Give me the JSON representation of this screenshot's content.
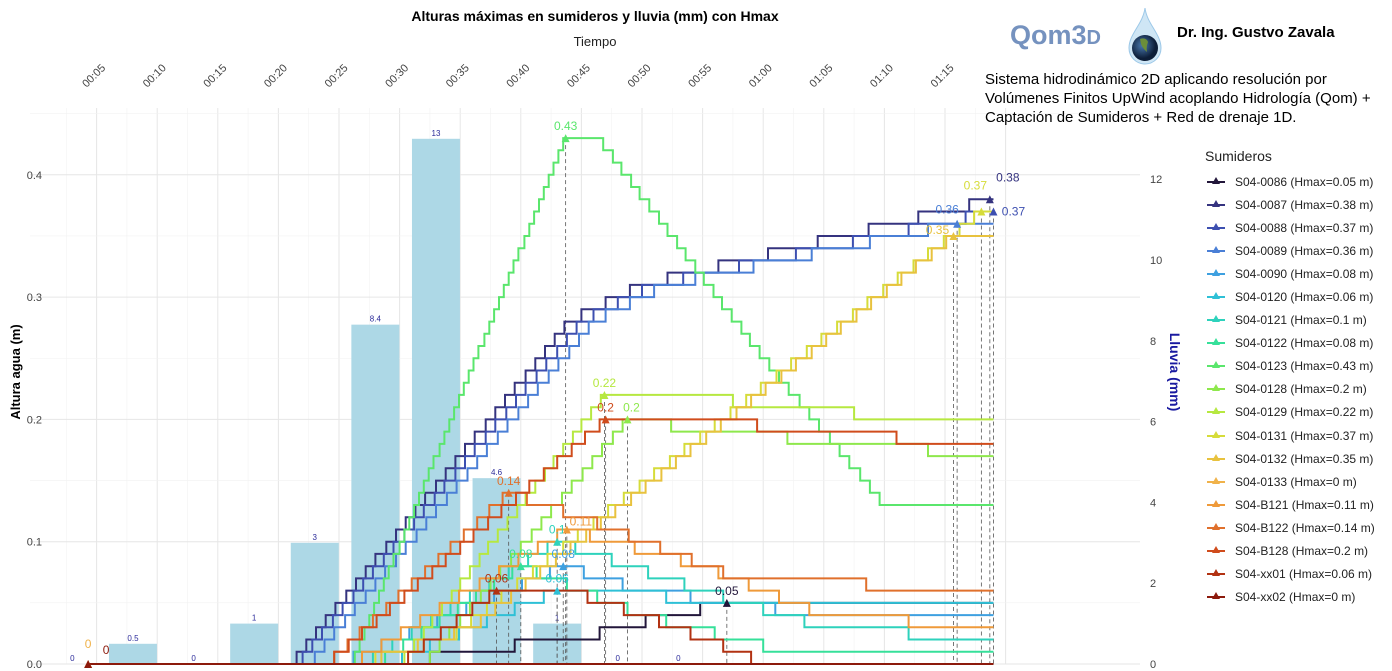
{
  "header": {
    "logo_text": "Qom3",
    "logo_suffix": "D",
    "author": "Dr. Ing. Gustvo Zavala",
    "description": "Sistema hidrodinámico 2D aplicando resolución por Volúmenes Finitos UpWind acoplando Hidrología (Qom) + Captación de Sumideros + Red de drenaje 1D."
  },
  "chart_data": {
    "type": "line",
    "title": "Alturas máximas en sumideros y lluvia (mm) con Hmax",
    "xlabel": "Tiempo",
    "ylabel": "Altura agua (m)",
    "ylabel_right": "Lluvia (mm)",
    "x_ticks": [
      "00:05",
      "00:10",
      "00:15",
      "00:20",
      "00:25",
      "00:30",
      "00:35",
      "00:40",
      "00:45",
      "00:50",
      "00:55",
      "01:00",
      "01:05",
      "01:10",
      "01:15"
    ],
    "x_tick_minutes": [
      5,
      10,
      15,
      20,
      25,
      30,
      35,
      40,
      45,
      50,
      55,
      60,
      65,
      70,
      75
    ],
    "ylim": [
      0,
      0.455
    ],
    "y_ticks": [
      "0.0",
      "0.1",
      "0.2",
      "0.3",
      "0.4"
    ],
    "y_tick_values": [
      0,
      0.1,
      0.2,
      0.3,
      0.4
    ],
    "y2_ticks": [
      "0",
      "2",
      "4",
      "6",
      "8",
      "10",
      "12"
    ],
    "y2_tick_values": [
      0,
      2,
      4,
      6,
      8,
      10,
      12
    ],
    "rain": {
      "color": "#add8e6",
      "label_color": "#2b2b9a",
      "minutes": [
        3,
        8,
        13,
        18,
        23,
        28,
        33,
        38,
        43,
        48,
        53
      ],
      "values": [
        0,
        0.5,
        0,
        1,
        3,
        8.4,
        13,
        4.6,
        1,
        0,
        0
      ],
      "labels": [
        "0",
        "0.5",
        "0",
        "1",
        "3",
        "8.4",
        "13",
        "4.6",
        "1",
        "0",
        "0"
      ]
    },
    "legend_title": "Sumideros",
    "legend_position": "right",
    "series": [
      {
        "name": "S04-0086 (Hmax=0.05 m)",
        "color": "#22163a",
        "points": [
          [
            20,
            0
          ],
          [
            31,
            0
          ],
          [
            34,
            0.01
          ],
          [
            45,
            0.02
          ],
          [
            48,
            0.03
          ],
          [
            57,
            0.05
          ],
          [
            79,
            0.05
          ]
        ],
        "peak": [
          57,
          0.05
        ],
        "peak_label": "0.05"
      },
      {
        "name": "S04-0087 (Hmax=0.38 m)",
        "color": "#35337f",
        "points": [
          [
            21,
            0
          ],
          [
            44,
            0.28
          ],
          [
            50,
            0.31
          ],
          [
            79,
            0.38
          ]
        ],
        "peak": [
          78.7,
          0.38
        ],
        "peak_label": "0.38"
      },
      {
        "name": "S04-0088 (Hmax=0.37 m)",
        "color": "#3d4fb0",
        "points": [
          [
            21.5,
            0
          ],
          [
            45,
            0.28
          ],
          [
            51,
            0.31
          ],
          [
            79,
            0.37
          ]
        ],
        "peak": [
          79,
          0.37
        ],
        "peak_label": "0.37"
      },
      {
        "name": "S04-0089 (Hmax=0.36 m)",
        "color": "#4a7fd6",
        "points": [
          [
            22.5,
            0
          ],
          [
            46,
            0.28
          ],
          [
            52,
            0.31
          ],
          [
            76,
            0.36
          ],
          [
            79,
            0.36
          ]
        ],
        "peak": [
          76,
          0.36
        ],
        "peak_label": "0.36"
      },
      {
        "name": "S04-0090 (Hmax=0.08 m)",
        "color": "#3ea0e0",
        "points": [
          [
            25,
            0
          ],
          [
            43.5,
            0.08
          ],
          [
            50,
            0.06
          ],
          [
            58,
            0.05
          ],
          [
            64,
            0.04
          ],
          [
            79,
            0.04
          ]
        ],
        "peak": [
          43.5,
          0.08
        ],
        "peak_label": "0.08"
      },
      {
        "name": "S04-0120 (Hmax=0.06 m)",
        "color": "#2ec0d6",
        "points": [
          [
            29,
            0
          ],
          [
            43,
            0.06
          ],
          [
            48,
            0.06
          ],
          [
            56,
            0.05
          ],
          [
            79,
            0.05
          ]
        ],
        "peak": [
          43,
          0.06
        ],
        "peak_label": "0.06"
      },
      {
        "name": "S04-0121 (Hmax=0.1 m)",
        "color": "#2ed2bc",
        "points": [
          [
            27,
            0
          ],
          [
            43,
            0.1
          ],
          [
            55,
            0.06
          ],
          [
            65,
            0.03
          ],
          [
            79,
            0.02
          ]
        ],
        "peak": [
          43,
          0.1
        ],
        "peak_label": "0.1"
      },
      {
        "name": "S04-0122 (Hmax=0.08 m)",
        "color": "#36e09a",
        "points": [
          [
            28,
            0
          ],
          [
            40,
            0.08
          ],
          [
            50,
            0.04
          ],
          [
            62,
            0.01
          ],
          [
            79,
            0.01
          ]
        ],
        "peak": [
          40,
          0.08
        ],
        "peak_label": "0.08"
      },
      {
        "name": "S04-0123 (Hmax=0.43 m)",
        "color": "#5ae66c",
        "points": [
          [
            26,
            0
          ],
          [
            43.7,
            0.43
          ],
          [
            46.4,
            0.43
          ],
          [
            60,
            0.25
          ],
          [
            70,
            0.13
          ],
          [
            79,
            0.13
          ]
        ],
        "peak": [
          43.7,
          0.43
        ],
        "peak_label": "0.43"
      },
      {
        "name": "S04-0128 (Hmax=0.2 m)",
        "color": "#8ee84c",
        "points": [
          [
            32,
            0
          ],
          [
            48.8,
            0.2
          ],
          [
            56,
            0.19
          ],
          [
            68,
            0.18
          ],
          [
            79,
            0.17
          ]
        ],
        "peak": [
          48.8,
          0.2
        ],
        "peak_label": "0.2"
      },
      {
        "name": "S04-0129 (Hmax=0.22 m)",
        "color": "#b6e840",
        "points": [
          [
            30,
            0
          ],
          [
            46.9,
            0.22
          ],
          [
            55,
            0.22
          ],
          [
            60,
            0.21
          ],
          [
            75,
            0.2
          ],
          [
            79,
            0.2
          ]
        ],
        "peak": [
          46.9,
          0.22
        ],
        "peak_label": "0.22"
      },
      {
        "name": "S04-0131 (Hmax=0.37 m)",
        "color": "#d6dc3a",
        "points": [
          [
            26,
            0
          ],
          [
            34,
            0.02
          ],
          [
            78,
            0.37
          ],
          [
            79,
            0.37
          ]
        ],
        "peak": [
          78,
          0.37
        ],
        "peak_label": "0.37"
      },
      {
        "name": "S04-0132 (Hmax=0.35 m)",
        "color": "#e8c23e",
        "points": [
          [
            27,
            0
          ],
          [
            36,
            0.03
          ],
          [
            75.7,
            0.35
          ],
          [
            79,
            0.35
          ]
        ],
        "peak": [
          75.7,
          0.35
        ],
        "peak_label": "0.35"
      },
      {
        "name": "S04-0133 (Hmax=0 m)",
        "color": "#f0b24a",
        "points": [
          [
            4.3,
            0
          ],
          [
            79,
            0
          ]
        ],
        "peak": [
          4.3,
          0
        ],
        "peak_label": "0"
      },
      {
        "name": "S04-B121 (Hmax=0.11 m)",
        "color": "#ef9a3a",
        "points": [
          [
            26,
            0
          ],
          [
            43.8,
            0.11
          ],
          [
            55,
            0.08
          ],
          [
            65,
            0.04
          ],
          [
            79,
            0.03
          ]
        ],
        "peak": [
          43.8,
          0.11
        ],
        "peak_label": "0.11"
      },
      {
        "name": "S04-B122 (Hmax=0.14 m)",
        "color": "#e0702c",
        "points": [
          [
            24,
            0
          ],
          [
            39,
            0.14
          ],
          [
            45,
            0.12
          ],
          [
            58,
            0.07
          ],
          [
            79,
            0.06
          ]
        ],
        "peak": [
          39,
          0.14
        ],
        "peak_label": "0.14"
      },
      {
        "name": "S04-B128 (Hmax=0.2 m)",
        "color": "#d04c1c",
        "points": [
          [
            24,
            0
          ],
          [
            47,
            0.2
          ],
          [
            56,
            0.2
          ],
          [
            63,
            0.19
          ],
          [
            79,
            0.18
          ]
        ],
        "peak": [
          47,
          0.2
        ],
        "peak_label": "0.2"
      },
      {
        "name": "S04-xx01 (Hmax=0.06 m)",
        "color": "#b23212",
        "points": [
          [
            30,
            0
          ],
          [
            38,
            0.06
          ],
          [
            44,
            0.06
          ],
          [
            50,
            0.04
          ],
          [
            58,
            0.01
          ],
          [
            60,
            0
          ],
          [
            79,
            0
          ]
        ],
        "peak": [
          38,
          0.06
        ],
        "peak_label": "0.06"
      },
      {
        "name": "S04-xx02 (Hmax=0 m)",
        "color": "#8c1a0c",
        "points": [
          [
            4.3,
            0
          ],
          [
            79,
            0
          ]
        ],
        "peak": [
          4.3,
          0
        ],
        "peak_label": "0"
      }
    ]
  }
}
